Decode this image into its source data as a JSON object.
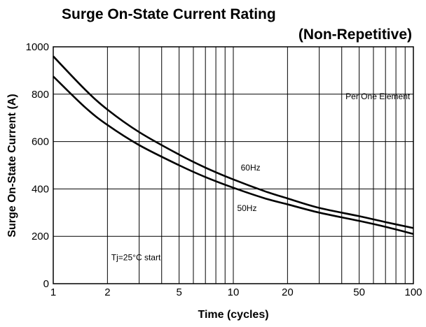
{
  "chart_data": {
    "type": "line",
    "title": "Surge On-State Current Rating",
    "subtitle": "(Non-Repetitive)",
    "xlabel": "Time (cycles)",
    "ylabel": "Surge On-State Current (A)",
    "xscale": "log",
    "xlim": [
      1,
      100
    ],
    "ylim": [
      0,
      1000
    ],
    "xticks": [
      1,
      2,
      5,
      10,
      20,
      50,
      100
    ],
    "yticks": [
      0,
      200,
      400,
      600,
      800,
      1000
    ],
    "grid": true,
    "series": [
      {
        "name": "60Hz",
        "x": [
          1,
          1.5,
          2,
          3,
          5,
          7,
          10,
          15,
          20,
          30,
          50,
          70,
          100
        ],
        "y": [
          960,
          820,
          735,
          640,
          545,
          490,
          440,
          390,
          360,
          320,
          285,
          260,
          235
        ]
      },
      {
        "name": "50Hz",
        "x": [
          1,
          1.5,
          2,
          3,
          5,
          7,
          10,
          15,
          20,
          30,
          50,
          70,
          100
        ],
        "y": [
          875,
          745,
          670,
          585,
          500,
          450,
          405,
          360,
          335,
          300,
          265,
          240,
          210
        ]
      }
    ],
    "annotations": [
      {
        "text": "Per One Element",
        "x": 42,
        "y": 790
      },
      {
        "text": "Tj=25°C  start",
        "x": 2.1,
        "y": 110
      }
    ]
  }
}
